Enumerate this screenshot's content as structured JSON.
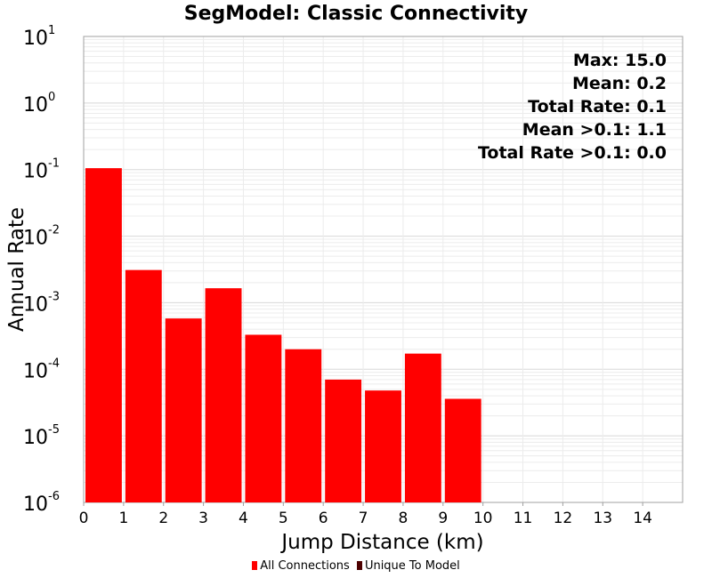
{
  "chart_data": {
    "type": "bar",
    "title": "SegModel: Classic Connectivity",
    "xlabel": "Jump Distance (km)",
    "ylabel": "Annual Rate",
    "y_scale": "log",
    "xlim": [
      0,
      15
    ],
    "ylim": [
      1e-06,
      10
    ],
    "x_ticks": [
      "0",
      "1",
      "2",
      "3",
      "4",
      "5",
      "6",
      "7",
      "8",
      "9",
      "10",
      "11",
      "12",
      "13",
      "14"
    ],
    "y_ticks": [
      {
        "base": "10",
        "exp": "1"
      },
      {
        "base": "10",
        "exp": "0"
      },
      {
        "base": "10",
        "exp": "-1"
      },
      {
        "base": "10",
        "exp": "-2"
      },
      {
        "base": "10",
        "exp": "-3"
      },
      {
        "base": "10",
        "exp": "-4"
      },
      {
        "base": "10",
        "exp": "-5"
      },
      {
        "base": "10",
        "exp": "-6"
      }
    ],
    "bin_width": 1,
    "series": [
      {
        "name": "All Connections",
        "color": "#ff0000",
        "x": [
          0.5,
          1.5,
          2.5,
          3.5,
          4.5,
          5.5,
          6.5,
          7.5,
          8.5,
          9.5
        ],
        "values": [
          0.105,
          0.0031,
          0.00058,
          0.00165,
          0.00033,
          0.0002,
          7e-05,
          4.8e-05,
          0.000172,
          3.6e-05
        ]
      },
      {
        "name": "Unique To Model",
        "color": "#4d0000",
        "x": [],
        "values": []
      }
    ],
    "annotations": [
      "Max: 15.0",
      "Mean: 0.2",
      "Total Rate: 0.1",
      "Mean >0.1: 1.1",
      "Total Rate >0.1: 0.0"
    ],
    "annotation_position": "top-right",
    "legend_position": "bottom",
    "grid": true
  },
  "legend": {
    "items": [
      {
        "label": "All Connections",
        "color": "#ff0000"
      },
      {
        "label": "Unique To Model",
        "color": "#4d0000"
      }
    ]
  }
}
